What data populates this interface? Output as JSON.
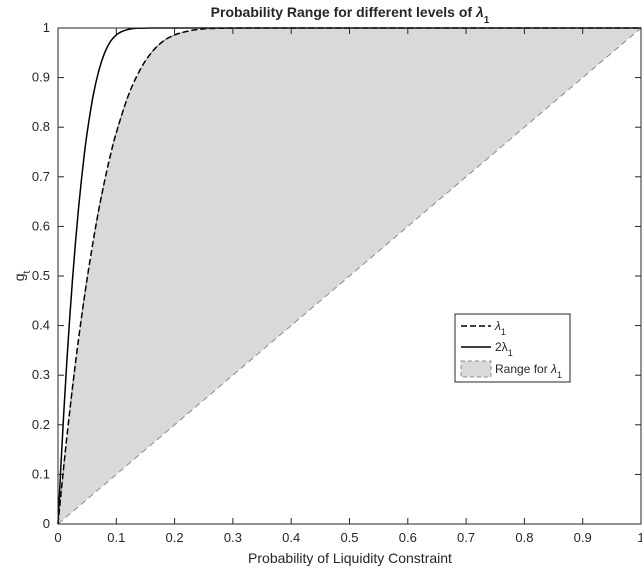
{
  "chart_data": {
    "type": "line",
    "title": "Probability Range for different levels of ",
    "title_symbol": "λ",
    "title_subscript": "1",
    "xlabel": "Probability of Liquidity Constraint",
    "ylabel": "g",
    "ylabel_subscript": "t",
    "xlim": [
      0,
      1
    ],
    "ylim": [
      0,
      1
    ],
    "grid": false,
    "x_ticks": [
      "0",
      "0.1",
      "0.2",
      "0.3",
      "0.4",
      "0.5",
      "0.6",
      "0.7",
      "0.8",
      "0.9",
      "1"
    ],
    "y_ticks": [
      "0",
      "0.1",
      "0.2",
      "0.3",
      "0.4",
      "0.5",
      "0.6",
      "0.7",
      "0.8",
      "0.9",
      "1"
    ],
    "legend_position": "center-right",
    "series": [
      {
        "name": "λ",
        "name_subscript": "1",
        "style": "dashed",
        "x": [
          0,
          0.01,
          0.02,
          0.03,
          0.04,
          0.05,
          0.06,
          0.07,
          0.08,
          0.09,
          0.1,
          0.12,
          0.14,
          0.16,
          0.18,
          0.2,
          0.22,
          0.24,
          0.26,
          0.28,
          0.3,
          0.33,
          0.36,
          0.4,
          0.5,
          0.7,
          1.0
        ],
        "y": [
          0,
          0.118,
          0.226,
          0.325,
          0.414,
          0.495,
          0.568,
          0.634,
          0.692,
          0.744,
          0.789,
          0.862,
          0.914,
          0.95,
          0.973,
          0.986,
          0.993,
          0.997,
          0.999,
          0.9995,
          0.9998,
          1,
          1,
          1,
          1,
          1,
          1
        ]
      },
      {
        "name": "2λ",
        "name_prefix": "2",
        "name_subscript": "1",
        "style": "solid",
        "x": [
          0,
          0.005,
          0.01,
          0.015,
          0.02,
          0.025,
          0.03,
          0.035,
          0.04,
          0.045,
          0.05,
          0.06,
          0.07,
          0.08,
          0.09,
          0.1,
          0.11,
          0.12,
          0.13,
          0.14,
          0.15,
          0.165,
          0.18,
          0.2,
          0.3,
          0.5,
          1.0
        ],
        "y": [
          0,
          0.118,
          0.226,
          0.325,
          0.414,
          0.495,
          0.568,
          0.634,
          0.692,
          0.744,
          0.789,
          0.862,
          0.914,
          0.95,
          0.973,
          0.986,
          0.993,
          0.997,
          0.999,
          0.9995,
          0.9998,
          1,
          1,
          1,
          1,
          1,
          1
        ]
      }
    ],
    "range_area": {
      "name": "Range for ",
      "name_symbol": "λ",
      "name_subscript": "1",
      "fill": "#d9d9d9",
      "lower": {
        "x": [
          0,
          1
        ],
        "y": [
          0,
          1
        ]
      },
      "upper_from_series": 0
    },
    "colors": {
      "lines": "#000000",
      "fill": "#d9d9d9",
      "fill_edge": "#8c8c8c",
      "axis": "#262626"
    }
  }
}
